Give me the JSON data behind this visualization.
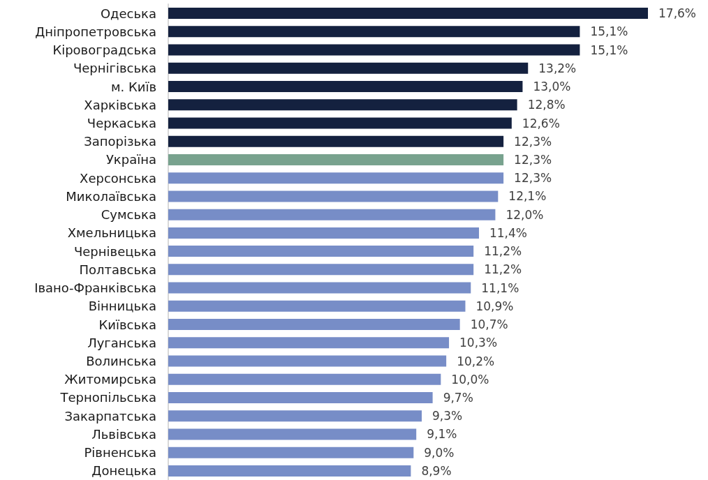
{
  "chart_data": {
    "type": "bar",
    "orientation": "horizontal",
    "categories": [
      "Одеська",
      "Дніпропетровська",
      "Кіровоградська",
      "Чернігівська",
      "м. Київ",
      "Харківська",
      "Черкаська",
      "Запорізька",
      "Україна",
      "Херсонська",
      "Миколаївська",
      "Сумська",
      "Хмельницька",
      "Чернівецька",
      "Полтавська",
      "Івано-Франківська",
      "Вінницька",
      "Київська",
      "Луганська",
      "Волинська",
      "Житомирська",
      "Тернопільська",
      "Закарпатська",
      "Львівська",
      "Рівненська",
      "Донецька"
    ],
    "values": [
      17.6,
      15.1,
      15.1,
      13.2,
      13.0,
      12.8,
      12.6,
      12.3,
      12.3,
      12.3,
      12.1,
      12.0,
      11.4,
      11.2,
      11.2,
      11.1,
      10.9,
      10.7,
      10.3,
      10.2,
      10.0,
      9.7,
      9.3,
      9.1,
      9.0,
      8.9
    ],
    "value_labels": [
      "17,6%",
      "15,1%",
      "15,1%",
      "13,2%",
      "13,0%",
      "12,8%",
      "12,6%",
      "12,3%",
      "12,3%",
      "12,3%",
      "12,1%",
      "12,0%",
      "11,4%",
      "11,2%",
      "11,2%",
      "11,1%",
      "10,9%",
      "10,7%",
      "10,3%",
      "10,2%",
      "10,0%",
      "9,7%",
      "9,3%",
      "9,1%",
      "9,0%",
      "8,9%"
    ],
    "colors": [
      "#14213f",
      "#14213f",
      "#14213f",
      "#14213f",
      "#14213f",
      "#14213f",
      "#14213f",
      "#14213f",
      "#78a28e",
      "#778dc7",
      "#778dc7",
      "#778dc7",
      "#778dc7",
      "#778dc7",
      "#778dc7",
      "#778dc7",
      "#778dc7",
      "#778dc7",
      "#778dc7",
      "#778dc7",
      "#778dc7",
      "#778dc7",
      "#778dc7",
      "#778dc7",
      "#778dc7",
      "#778dc7"
    ]
  }
}
